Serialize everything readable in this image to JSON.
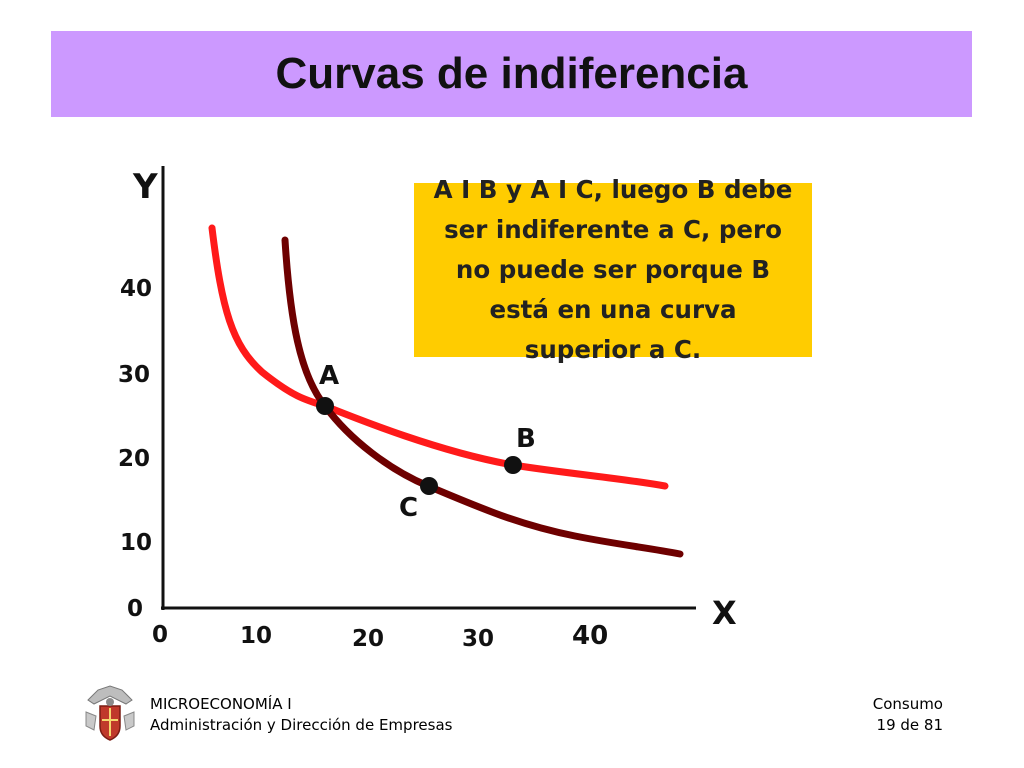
{
  "slide": {
    "title": "Curvas de indiferencia",
    "note": "A I B y A I C, luego B debe ser indiferente a C, pero no puede ser porque B está en una curva superior a C."
  },
  "axes": {
    "y_label": "Y",
    "x_label": "X",
    "y_ticks": [
      "40",
      "30",
      "20",
      "10",
      "0"
    ],
    "x_ticks": [
      "0",
      "10",
      "20",
      "30",
      "40"
    ]
  },
  "points": [
    {
      "label": "A"
    },
    {
      "label": "B"
    },
    {
      "label": "C"
    }
  ],
  "colors": {
    "title_bg": "#cc99ff",
    "note_bg": "#ffcc00",
    "curve_upper": "#ff1a1a",
    "curve_lower": "#6e0000"
  },
  "footer": {
    "course": "MICROECONOMÍA I",
    "program": "Administración y Dirección de Empresas",
    "section": "Consumo",
    "page": "19 de 81"
  },
  "icons": {
    "logo": "university-crest-icon"
  }
}
